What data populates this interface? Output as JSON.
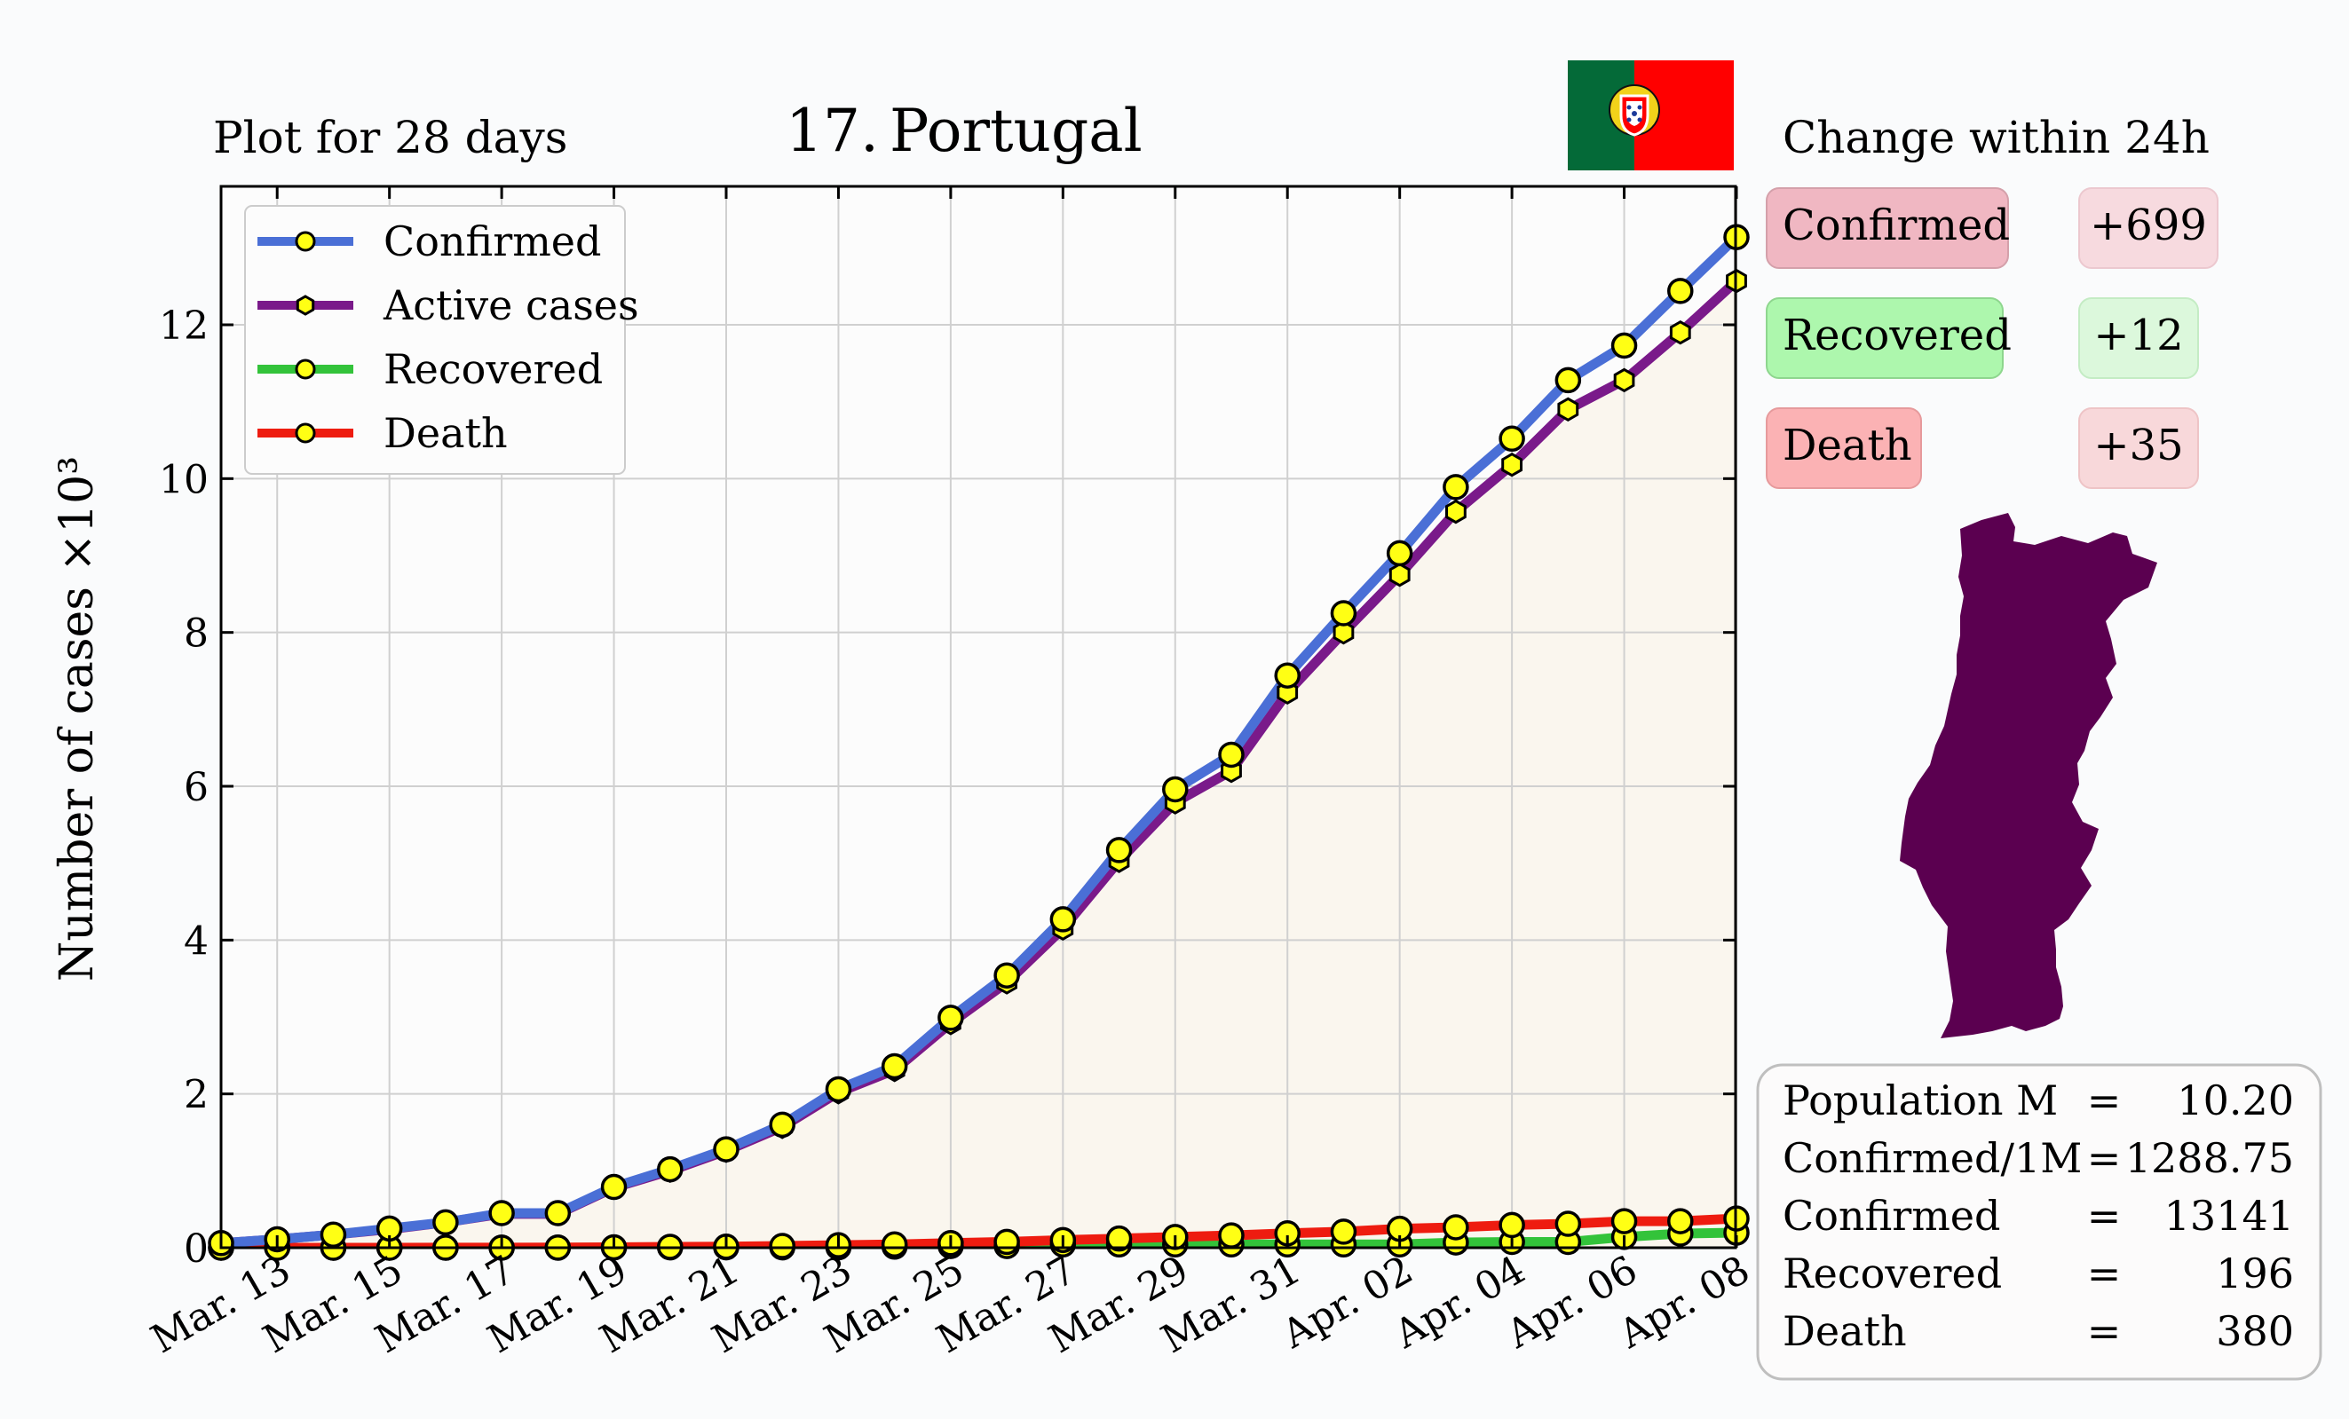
{
  "plot_span": "Plot for 28 days",
  "rank": "17.",
  "country": "Portugal",
  "change_title": "Change within 24h",
  "changes": [
    {
      "label": "Confirmed",
      "value": "+699"
    },
    {
      "label": "Recovered",
      "value": "+12"
    },
    {
      "label": "Death",
      "value": "+35"
    }
  ],
  "stats": [
    {
      "label": "Population M",
      "eq": "=",
      "value": "10.20"
    },
    {
      "label": "Confirmed/1M",
      "eq": "=",
      "value": "1288.75"
    },
    {
      "label": "Confirmed",
      "eq": "=",
      "value": "13141"
    },
    {
      "label": "Recovered",
      "eq": "=",
      "value": "196"
    },
    {
      "label": "Death",
      "eq": "=",
      "value": "380"
    }
  ],
  "colors": {
    "confirmed": "#4a6fd6",
    "active": "#7a1a8a",
    "recovered": "#33c33a",
    "death": "#ee1c10",
    "marker": "#ffff14",
    "fill": "#faf6ee",
    "map": "#5b0050",
    "flag_green": "#046a38",
    "flag_red": "#ff0000",
    "change_confirmed_bg": "#f0b7c2",
    "change_recovered_bg": "#adf7ad",
    "change_death_bg": "#fbb2b4",
    "change_confirmed_val_bg": "#f7dadf",
    "change_recovered_val_bg": "#dcf8dc",
    "change_death_val_bg": "#f8d8da"
  },
  "icons": {
    "flag": "portugal-flag-icon",
    "map": "portugal-map-icon"
  },
  "chart_data": {
    "type": "line",
    "ylabel": "Number of cases ×10³",
    "ylim": [
      0,
      13.8
    ],
    "yticks": [
      0,
      2,
      4,
      6,
      8,
      10,
      12
    ],
    "x": [
      "Mar. 12",
      "Mar. 13",
      "Mar. 14",
      "Mar. 15",
      "Mar. 16",
      "Mar. 17",
      "Mar. 18",
      "Mar. 19",
      "Mar. 20",
      "Mar. 21",
      "Mar. 22",
      "Mar. 23",
      "Mar. 24",
      "Mar. 25",
      "Mar. 26",
      "Mar. 27",
      "Mar. 28",
      "Mar. 29",
      "Mar. 30",
      "Mar. 31",
      "Apr. 01",
      "Apr. 02",
      "Apr. 03",
      "Apr. 04",
      "Apr. 05",
      "Apr. 06",
      "Apr. 07",
      "Apr. 08"
    ],
    "xtick_labels": [
      "Mar. 13",
      "Mar. 15",
      "Mar. 17",
      "Mar. 19",
      "Mar. 21",
      "Mar. 23",
      "Mar. 25",
      "Mar. 27",
      "Mar. 29",
      "Mar. 31",
      "Apr. 02",
      "Apr. 04",
      "Apr. 06",
      "Apr. 08"
    ],
    "legend_position": "top-left",
    "grid": true,
    "series": [
      {
        "name": "Confirmed",
        "color": "#4a6fd6",
        "marker": "circle",
        "values": [
          0.06,
          0.11,
          0.17,
          0.25,
          0.33,
          0.45,
          0.45,
          0.79,
          1.02,
          1.28,
          1.6,
          2.06,
          2.36,
          2.99,
          3.54,
          4.27,
          5.17,
          5.96,
          6.41,
          7.44,
          8.25,
          9.03,
          9.89,
          10.52,
          11.28,
          11.73,
          12.44,
          13.14
        ]
      },
      {
        "name": "Active cases",
        "color": "#7a1a8a",
        "marker": "hexagon",
        "values": [
          0.06,
          0.11,
          0.17,
          0.24,
          0.33,
          0.44,
          0.44,
          0.78,
          1.0,
          1.26,
          1.57,
          2.02,
          2.31,
          2.92,
          3.45,
          4.15,
          5.03,
          5.79,
          6.2,
          7.22,
          8.0,
          8.75,
          9.57,
          10.18,
          10.9,
          11.28,
          11.9,
          12.57
        ]
      },
      {
        "name": "Recovered",
        "color": "#33c33a",
        "marker": "circle",
        "values": [
          0,
          0,
          0,
          0,
          0,
          0,
          0,
          0.003,
          0.005,
          0.005,
          0.005,
          0.005,
          0.014,
          0.022,
          0.022,
          0.043,
          0.043,
          0.043,
          0.043,
          0.043,
          0.043,
          0.043,
          0.068,
          0.075,
          0.075,
          0.14,
          0.184,
          0.196
        ]
      },
      {
        "name": "Death",
        "color": "#ee1c10",
        "marker": "circle",
        "values": [
          0,
          0,
          0,
          0,
          0.001,
          0.002,
          0.003,
          0.006,
          0.012,
          0.014,
          0.023,
          0.033,
          0.043,
          0.06,
          0.076,
          0.1,
          0.119,
          0.14,
          0.16,
          0.187,
          0.209,
          0.246,
          0.266,
          0.295,
          0.311,
          0.345,
          0.345,
          0.38
        ]
      }
    ]
  }
}
